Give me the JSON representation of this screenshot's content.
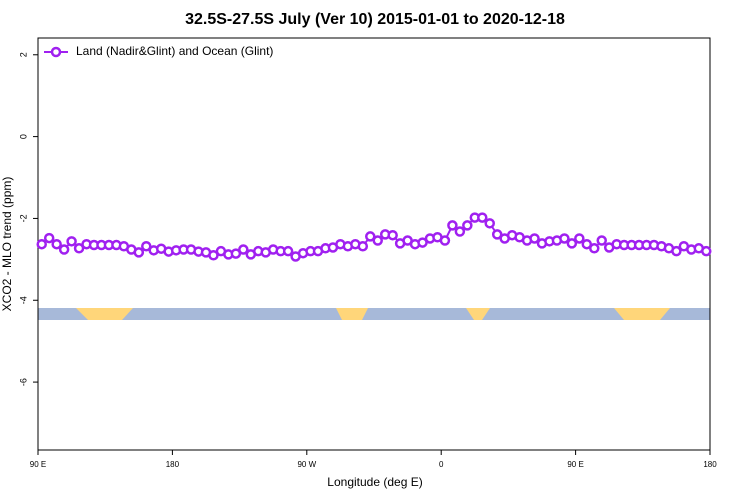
{
  "chart_data": {
    "type": "line",
    "title": "32.5S-27.5S July (Ver 10)   2015-01-01 to 2020-12-18",
    "x_label": "Longitude (deg E)",
    "y_label": "XCO2 - MLO trend (ppm)",
    "legend": "top-left",
    "xlim": [
      90,
      540
    ],
    "ylim": [
      -7.66,
      2.41
    ],
    "xticks": [
      {
        "value": 90,
        "label": "90 E"
      },
      180,
      {
        "value": 270,
        "label": "90 W"
      },
      {
        "value": 360,
        "label": "0"
      },
      {
        "value": 450,
        "label": "90 E"
      },
      {
        "value": 540,
        "label": "180"
      }
    ],
    "yticks": [
      -6,
      -4,
      -2,
      0,
      2
    ],
    "x": [
      92.5,
      97.5,
      102.5,
      107.5,
      112.5,
      117.5,
      122.5,
      127.5,
      132.5,
      137.5,
      142.5,
      147.5,
      152.5,
      157.5,
      162.5,
      167.5,
      172.5,
      177.5,
      182.5,
      187.5,
      192.5,
      197.5,
      202.5,
      207.5,
      212.5,
      217.5,
      222.5,
      227.5,
      232.5,
      237.5,
      242.5,
      247.5,
      252.5,
      257.5,
      262.5,
      267.5,
      272.5,
      277.5,
      282.5,
      287.5,
      292.5,
      297.5,
      302.5,
      307.5,
      312.5,
      317.5,
      322.5,
      327.5,
      332.5,
      337.5,
      342.5,
      347.5,
      352.5,
      357.5,
      362.5,
      367.5,
      372.5,
      377.5,
      382.5,
      387.5,
      392.5,
      397.5,
      402.5,
      407.5,
      412.5,
      417.5,
      422.5,
      427.5,
      432.5,
      437.5,
      442.5,
      447.5,
      452.5,
      457.5,
      462.5,
      467.5,
      472.5,
      477.5,
      482.5,
      487.5,
      492.5,
      497.5,
      502.5,
      507.5,
      512.5,
      517.5,
      522.5,
      527.5,
      532.5,
      537.5
    ],
    "series": [
      {
        "name": "Land (Nadir&Glint) and Ocean (Glint)",
        "color": "#a020f0",
        "values": [
          -2.63,
          -2.48,
          -2.63,
          -2.76,
          -2.56,
          -2.73,
          -2.63,
          -2.65,
          -2.65,
          -2.65,
          -2.65,
          -2.68,
          -2.76,
          -2.83,
          -2.68,
          -2.78,
          -2.74,
          -2.81,
          -2.78,
          -2.76,
          -2.76,
          -2.81,
          -2.83,
          -2.9,
          -2.8,
          -2.88,
          -2.86,
          -2.76,
          -2.88,
          -2.8,
          -2.83,
          -2.76,
          -2.8,
          -2.8,
          -2.93,
          -2.85,
          -2.8,
          -2.8,
          -2.73,
          -2.71,
          -2.63,
          -2.68,
          -2.63,
          -2.68,
          -2.44,
          -2.54,
          -2.39,
          -2.41,
          -2.61,
          -2.54,
          -2.63,
          -2.59,
          -2.49,
          -2.46,
          -2.54,
          -2.17,
          -2.32,
          -2.17,
          -1.98,
          -1.98,
          -2.12,
          -2.39,
          -2.49,
          -2.41,
          -2.46,
          -2.54,
          -2.49,
          -2.61,
          -2.56,
          -2.54,
          -2.49,
          -2.61,
          -2.49,
          -2.63,
          -2.73,
          -2.54,
          -2.71,
          -2.63,
          -2.65,
          -2.65,
          -2.65,
          -2.65,
          -2.65,
          -2.68,
          -2.73,
          -2.8,
          -2.68,
          -2.76,
          -2.73,
          -2.8
        ]
      }
    ]
  }
}
